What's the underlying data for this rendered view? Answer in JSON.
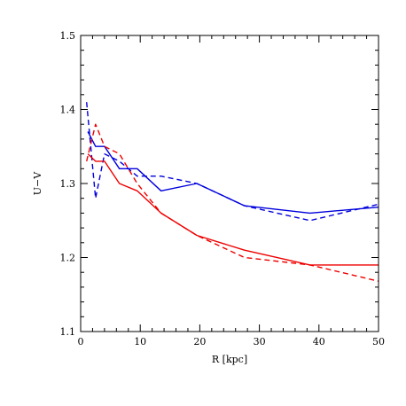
{
  "chart_data": {
    "type": "line",
    "title": "",
    "xlabel": "R [kpc]",
    "ylabel": "U−V",
    "xlim": [
      0,
      50
    ],
    "ylim": [
      1.1,
      1.5
    ],
    "x_ticks": [
      0,
      10,
      20,
      30,
      40,
      50
    ],
    "y_ticks": [
      1.1,
      1.2,
      1.3,
      1.4,
      1.5
    ],
    "x_tick_labels": [
      "0",
      "10",
      "20",
      "30",
      "40",
      "50"
    ],
    "y_tick_labels": [
      "1.1",
      "1.2",
      "1.3",
      "1.4",
      "1.5"
    ],
    "grid": false,
    "series": [
      {
        "color": "#0000dd",
        "style": "solid",
        "x": [
          1.2,
          2.5,
          4,
          6.5,
          9.5,
          13.5,
          19.5,
          27.5,
          38.5,
          50
        ],
        "y": [
          1.37,
          1.35,
          1.35,
          1.32,
          1.32,
          1.29,
          1.3,
          1.27,
          1.26,
          1.268
        ]
      },
      {
        "color": "#0000dd",
        "style": "dashed",
        "x": [
          1.0,
          2.5,
          4,
          6.5,
          9.5,
          13.5,
          19.5,
          27.5,
          38.5,
          50
        ],
        "y": [
          1.41,
          1.28,
          1.34,
          1.33,
          1.31,
          1.31,
          1.3,
          1.27,
          1.25,
          1.272
        ]
      },
      {
        "color": "#ee0000",
        "style": "solid",
        "x": [
          1.2,
          2.5,
          4,
          6.5,
          9.5,
          13.5,
          19.5,
          27.5,
          38.5,
          50
        ],
        "y": [
          1.34,
          1.33,
          1.33,
          1.3,
          1.29,
          1.26,
          1.23,
          1.21,
          1.19,
          1.19
        ]
      },
      {
        "color": "#ee0000",
        "style": "dashed",
        "x": [
          1.0,
          2.5,
          4,
          6.5,
          9.5,
          13.5,
          19.5,
          27.5,
          38.5,
          50
        ],
        "y": [
          1.33,
          1.38,
          1.35,
          1.34,
          1.3,
          1.26,
          1.23,
          1.2,
          1.19,
          1.168
        ]
      }
    ]
  }
}
